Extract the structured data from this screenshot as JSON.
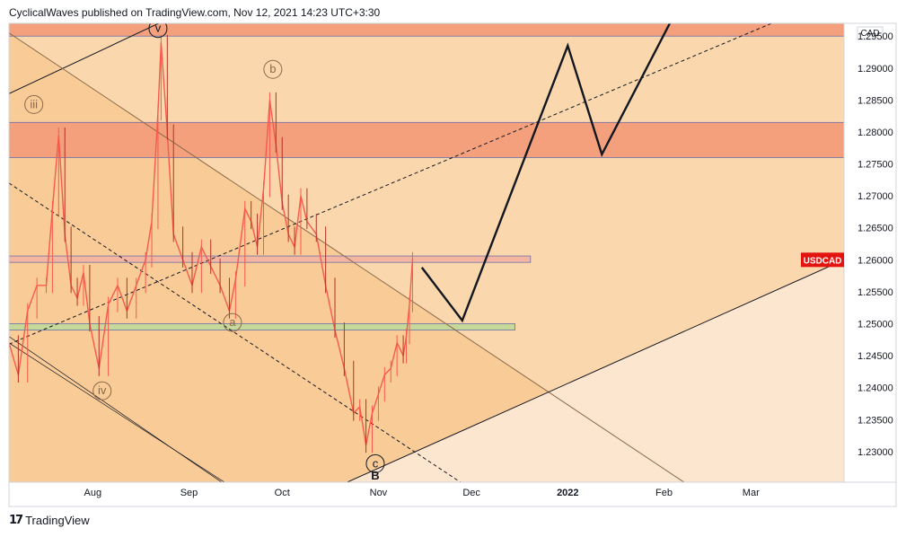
{
  "header": {
    "publish_line": "CyclicalWaves published on TradingView.com, Nov 12, 2021 14:23 UTC+3:30"
  },
  "footer": {
    "logo_glyph": "17",
    "brand": "TradingView"
  },
  "chart_data": {
    "type": "line",
    "symbol": "USDCAD",
    "currency": "CAD",
    "last_price_label": "USDCAD",
    "last_price": 1.26,
    "y_ticks": [
      "1.29500",
      "1.29000",
      "1.28500",
      "1.28000",
      "1.27500",
      "1.27000",
      "1.26500",
      "1.26000",
      "1.25500",
      "1.25000",
      "1.24500",
      "1.24000",
      "1.23500",
      "1.23000"
    ],
    "ylim": [
      1.2252,
      1.297
    ],
    "x_ticks": [
      {
        "label": "Aug",
        "date": "2021-08-01",
        "bold": false
      },
      {
        "label": "Sep",
        "date": "2021-09-01",
        "bold": false
      },
      {
        "label": "Oct",
        "date": "2021-10-01",
        "bold": false
      },
      {
        "label": "Nov",
        "date": "2021-11-01",
        "bold": false
      },
      {
        "label": "Dec",
        "date": "2021-12-01",
        "bold": false
      },
      {
        "label": "2022",
        "date": "2022-01-01",
        "bold": true
      },
      {
        "label": "Feb",
        "date": "2022-02-01",
        "bold": false
      },
      {
        "label": "Mar",
        "date": "2022-03-01",
        "bold": false
      }
    ],
    "xlim": [
      "2021-07-05",
      "2022-03-31"
    ],
    "price_series": [
      [
        "2021-07-05",
        1.247
      ],
      [
        "2021-07-08",
        1.242
      ],
      [
        "2021-07-11",
        1.252
      ],
      [
        "2021-07-14",
        1.256
      ],
      [
        "2021-07-17",
        1.256
      ],
      [
        "2021-07-19",
        1.268
      ],
      [
        "2021-07-21",
        1.2795
      ],
      [
        "2021-07-23",
        1.264
      ],
      [
        "2021-07-25",
        1.256
      ],
      [
        "2021-07-27",
        1.254
      ],
      [
        "2021-07-29",
        1.258
      ],
      [
        "2021-07-31",
        1.25
      ],
      [
        "2021-08-03",
        1.243
      ],
      [
        "2021-08-06",
        1.253
      ],
      [
        "2021-08-09",
        1.256
      ],
      [
        "2021-08-12",
        1.252
      ],
      [
        "2021-08-15",
        1.256
      ],
      [
        "2021-08-18",
        1.26
      ],
      [
        "2021-08-20",
        1.266
      ],
      [
        "2021-08-22",
        1.283
      ],
      [
        "2021-08-23",
        1.294
      ],
      [
        "2021-08-25",
        1.28
      ],
      [
        "2021-08-27",
        1.264
      ],
      [
        "2021-08-30",
        1.26
      ],
      [
        "2021-09-02",
        1.256
      ],
      [
        "2021-09-05",
        1.262
      ],
      [
        "2021-09-08",
        1.259
      ],
      [
        "2021-09-11",
        1.256
      ],
      [
        "2021-09-14",
        1.252
      ],
      [
        "2021-09-16",
        1.257
      ],
      [
        "2021-09-19",
        1.268
      ],
      [
        "2021-09-21",
        1.266
      ],
      [
        "2021-09-23",
        1.262
      ],
      [
        "2021-09-25",
        1.271
      ],
      [
        "2021-09-27",
        1.285
      ],
      [
        "2021-09-29",
        1.278
      ],
      [
        "2021-10-01",
        1.269
      ],
      [
        "2021-10-03",
        1.264
      ],
      [
        "2021-10-05",
        1.262
      ],
      [
        "2021-10-07",
        1.27
      ],
      [
        "2021-10-09",
        1.266
      ],
      [
        "2021-10-12",
        1.264
      ],
      [
        "2021-10-15",
        1.256
      ],
      [
        "2021-10-18",
        1.249
      ],
      [
        "2021-10-21",
        1.243
      ],
      [
        "2021-10-24",
        1.236
      ],
      [
        "2021-10-26",
        1.237
      ],
      [
        "2021-10-28",
        1.231
      ],
      [
        "2021-10-30",
        1.236
      ],
      [
        "2021-11-01",
        1.239
      ],
      [
        "2021-11-03",
        1.242
      ],
      [
        "2021-11-05",
        1.243
      ],
      [
        "2021-11-07",
        1.247
      ],
      [
        "2021-11-09",
        1.245
      ],
      [
        "2021-11-10",
        1.248
      ],
      [
        "2021-11-11",
        1.253
      ],
      [
        "2021-11-12",
        1.26
      ]
    ],
    "zones": [
      {
        "name": "resistance-top",
        "from": 1.295,
        "to": 1.2985,
        "color": "#f4a07c"
      },
      {
        "name": "resistance-mid",
        "from": 1.276,
        "to": 1.2815,
        "color": "#f4a07c"
      },
      {
        "name": "current-resistance",
        "from": 1.2596,
        "to": 1.2606,
        "color": "#f4b6a0",
        "x_end": "2021-12-20"
      },
      {
        "name": "support-green",
        "from": 1.249,
        "to": 1.25,
        "color": "#c7d99a",
        "x_end": "2021-12-15"
      }
    ],
    "trendlines": [
      {
        "name": "upper-channel",
        "p1": [
          "2021-07-05",
          1.286
        ],
        "p2": [
          "2021-08-31",
          1.299
        ],
        "style": "solid"
      },
      {
        "name": "falling-channel-upper",
        "p1": [
          "2021-07-05",
          1.2955
        ],
        "p2": [
          "2022-02-09",
          1.2247
        ],
        "style": "solid"
      },
      {
        "name": "falling-channel-lower-a",
        "p1": [
          "2021-07-05",
          1.248
        ],
        "p2": [
          "2021-09-13",
          1.2247
        ],
        "style": "solid"
      },
      {
        "name": "falling-channel-lower-b",
        "p1": [
          "2021-07-05",
          1.247
        ],
        "p2": [
          "2021-09-14",
          1.2247
        ],
        "style": "solid"
      },
      {
        "name": "dashed-midline-down",
        "p1": [
          "2021-07-05",
          1.272
        ],
        "p2": [
          "2021-11-29",
          1.2247
        ],
        "style": "dashed"
      },
      {
        "name": "dashed-up",
        "p1": [
          "2021-07-05",
          1.2468
        ],
        "p2": [
          "2022-03-15",
          1.2985
        ],
        "style": "dashed"
      },
      {
        "name": "rising-support",
        "p1": [
          "2021-10-21",
          1.225
        ],
        "p2": [
          "2022-03-31",
          1.26
        ],
        "style": "solid"
      }
    ],
    "projection": [
      [
        "2021-11-15",
        1.2588
      ],
      [
        "2021-11-28",
        1.2505
      ],
      [
        "2022-01-01",
        1.2935
      ],
      [
        "2022-01-12",
        1.2765
      ],
      [
        "2022-02-05",
        1.299
      ]
    ],
    "wave_labels": [
      {
        "text": "v",
        "date": "2021-08-22",
        "price": 1.2962,
        "color": "#131722"
      },
      {
        "text": "b",
        "date": "2021-09-28",
        "price": 1.2898,
        "color": "#8a6a4b"
      },
      {
        "text": "iii",
        "date": "2021-07-13",
        "price": 1.2843,
        "color": "#8a6a4b"
      },
      {
        "text": "a",
        "date": "2021-09-15",
        "price": 1.2502,
        "color": "#8a6a4b"
      },
      {
        "text": "iv",
        "date": "2021-08-04",
        "price": 1.2395,
        "color": "#8a6a4b"
      },
      {
        "text": "c",
        "date": "2021-10-31",
        "price": 1.2281,
        "color": "#131722"
      },
      {
        "text": "B",
        "date": "2021-10-31",
        "price": 1.2262,
        "color": "#131722",
        "plain": true
      }
    ]
  },
  "colors": {
    "band_light": "#fde6cf",
    "band_mid": "#fbd7ad",
    "band_orange": "#f9cb97",
    "zone_red": "#f4a07c",
    "candle_up": "#f75a4a",
    "candle_down": "#b33224",
    "last_price_bg": "#e3130f"
  }
}
